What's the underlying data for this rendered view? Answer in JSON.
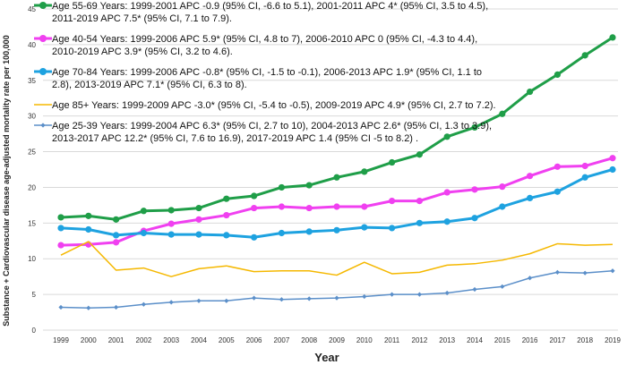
{
  "chart_data": {
    "type": "line",
    "title": "",
    "xlabel": "Year",
    "ylabel": "Substance + Cardiovascular disease age-adjusted mortality rate per 100,000",
    "ylim": [
      0,
      45
    ],
    "yticks": [
      0,
      5,
      10,
      15,
      20,
      25,
      30,
      35,
      40,
      45
    ],
    "grid": true,
    "legend_position": "top-left",
    "x": [
      "1999",
      "2000",
      "2001",
      "2002",
      "2003",
      "2004",
      "2005",
      "2006",
      "2007",
      "2008",
      "2009",
      "2010",
      "2011",
      "2012",
      "2013",
      "2014",
      "2015",
      "2016",
      "2017",
      "2018",
      "2019"
    ],
    "series": [
      {
        "name": "Age 55-69",
        "color": "#1f9e48",
        "marker": "circle",
        "legend_lines": [
          "Age 55-69 Years: 1999-2001 APC -0.9 (95% CI, -6.6 to 5.1), 2001-2011 APC 4* (95% CI, 3.5 to 4.5),",
          "2011-2019 APC 7.5* (95% CI, 7.1 to 7.9)."
        ],
        "values": [
          15.8,
          16.0,
          15.5,
          16.7,
          16.8,
          17.1,
          18.4,
          18.8,
          20.0,
          20.3,
          21.4,
          22.2,
          23.5,
          24.6,
          27.1,
          28.4,
          30.3,
          33.4,
          35.8,
          38.5,
          41.0
        ]
      },
      {
        "name": "Age 40-54",
        "color": "#f040f0",
        "marker": "circle",
        "legend_lines": [
          "Age 40-54 Years: 1999-2006 APC 5.9* (95% CI, 4.8 to 7), 2006-2010 APC 0 (95% CI, -4.3 to 4.4),",
          "2010-2019 APC 3.9* (95% CI, 3.2 to 4.6)."
        ],
        "values": [
          11.9,
          12.0,
          12.3,
          13.9,
          14.9,
          15.5,
          16.1,
          17.1,
          17.3,
          17.1,
          17.3,
          17.3,
          18.1,
          18.1,
          19.3,
          19.7,
          20.1,
          21.6,
          22.9,
          23.0,
          24.1
        ]
      },
      {
        "name": "Age 70-84",
        "color": "#1ea2e0",
        "marker": "circle",
        "legend_lines": [
          "Age 70-84 Years: 1999-2006 APC -0.8* (95% CI, -1.5 to -0.1), 2006-2013 APC 1.9* (95% CI, 1.1 to",
          "2.8), 2013-2019 APC 7.1* (95% CI, 6.3 to 8)."
        ],
        "values": [
          14.3,
          14.1,
          13.3,
          13.6,
          13.4,
          13.4,
          13.3,
          13.0,
          13.6,
          13.8,
          14.0,
          14.4,
          14.3,
          15.0,
          15.2,
          15.7,
          17.3,
          18.5,
          19.4,
          21.4,
          22.5
        ]
      },
      {
        "name": "Age 85+",
        "color": "#f5b800",
        "marker": "none",
        "legend_lines": [
          "Age 85+ Years: 1999-2009 APC -3.0* (95% CI, -5.4 to -0.5), 2009-2019 APC 4.9* (95% CI, 2.7 to 7.2)."
        ],
        "values": [
          10.5,
          12.4,
          8.4,
          8.7,
          7.5,
          8.6,
          9.0,
          8.2,
          8.3,
          8.3,
          7.7,
          9.5,
          7.9,
          8.1,
          9.1,
          9.3,
          9.8,
          10.7,
          12.1,
          11.9,
          12.0
        ]
      },
      {
        "name": "Age 25-39",
        "color": "#5b8fc9",
        "marker": "diamond",
        "legend_lines": [
          "Age 25-39 Years: 1999-2004 APC 6.3* (95% CI, 2.7 to 10), 2004-2013 APC 2.6* (95% CI, 1.3 to 3.9),",
          "2013-2017 APC 12.2* (95% CI, 7.6 to 16.9), 2017-2019 APC 1.4 (95% CI -5 to 8.2) ."
        ],
        "values": [
          3.2,
          3.1,
          3.2,
          3.6,
          3.9,
          4.1,
          4.1,
          4.5,
          4.3,
          4.4,
          4.5,
          4.7,
          5.0,
          5.0,
          5.2,
          5.7,
          6.1,
          7.3,
          8.1,
          8.0,
          8.3
        ]
      }
    ]
  }
}
